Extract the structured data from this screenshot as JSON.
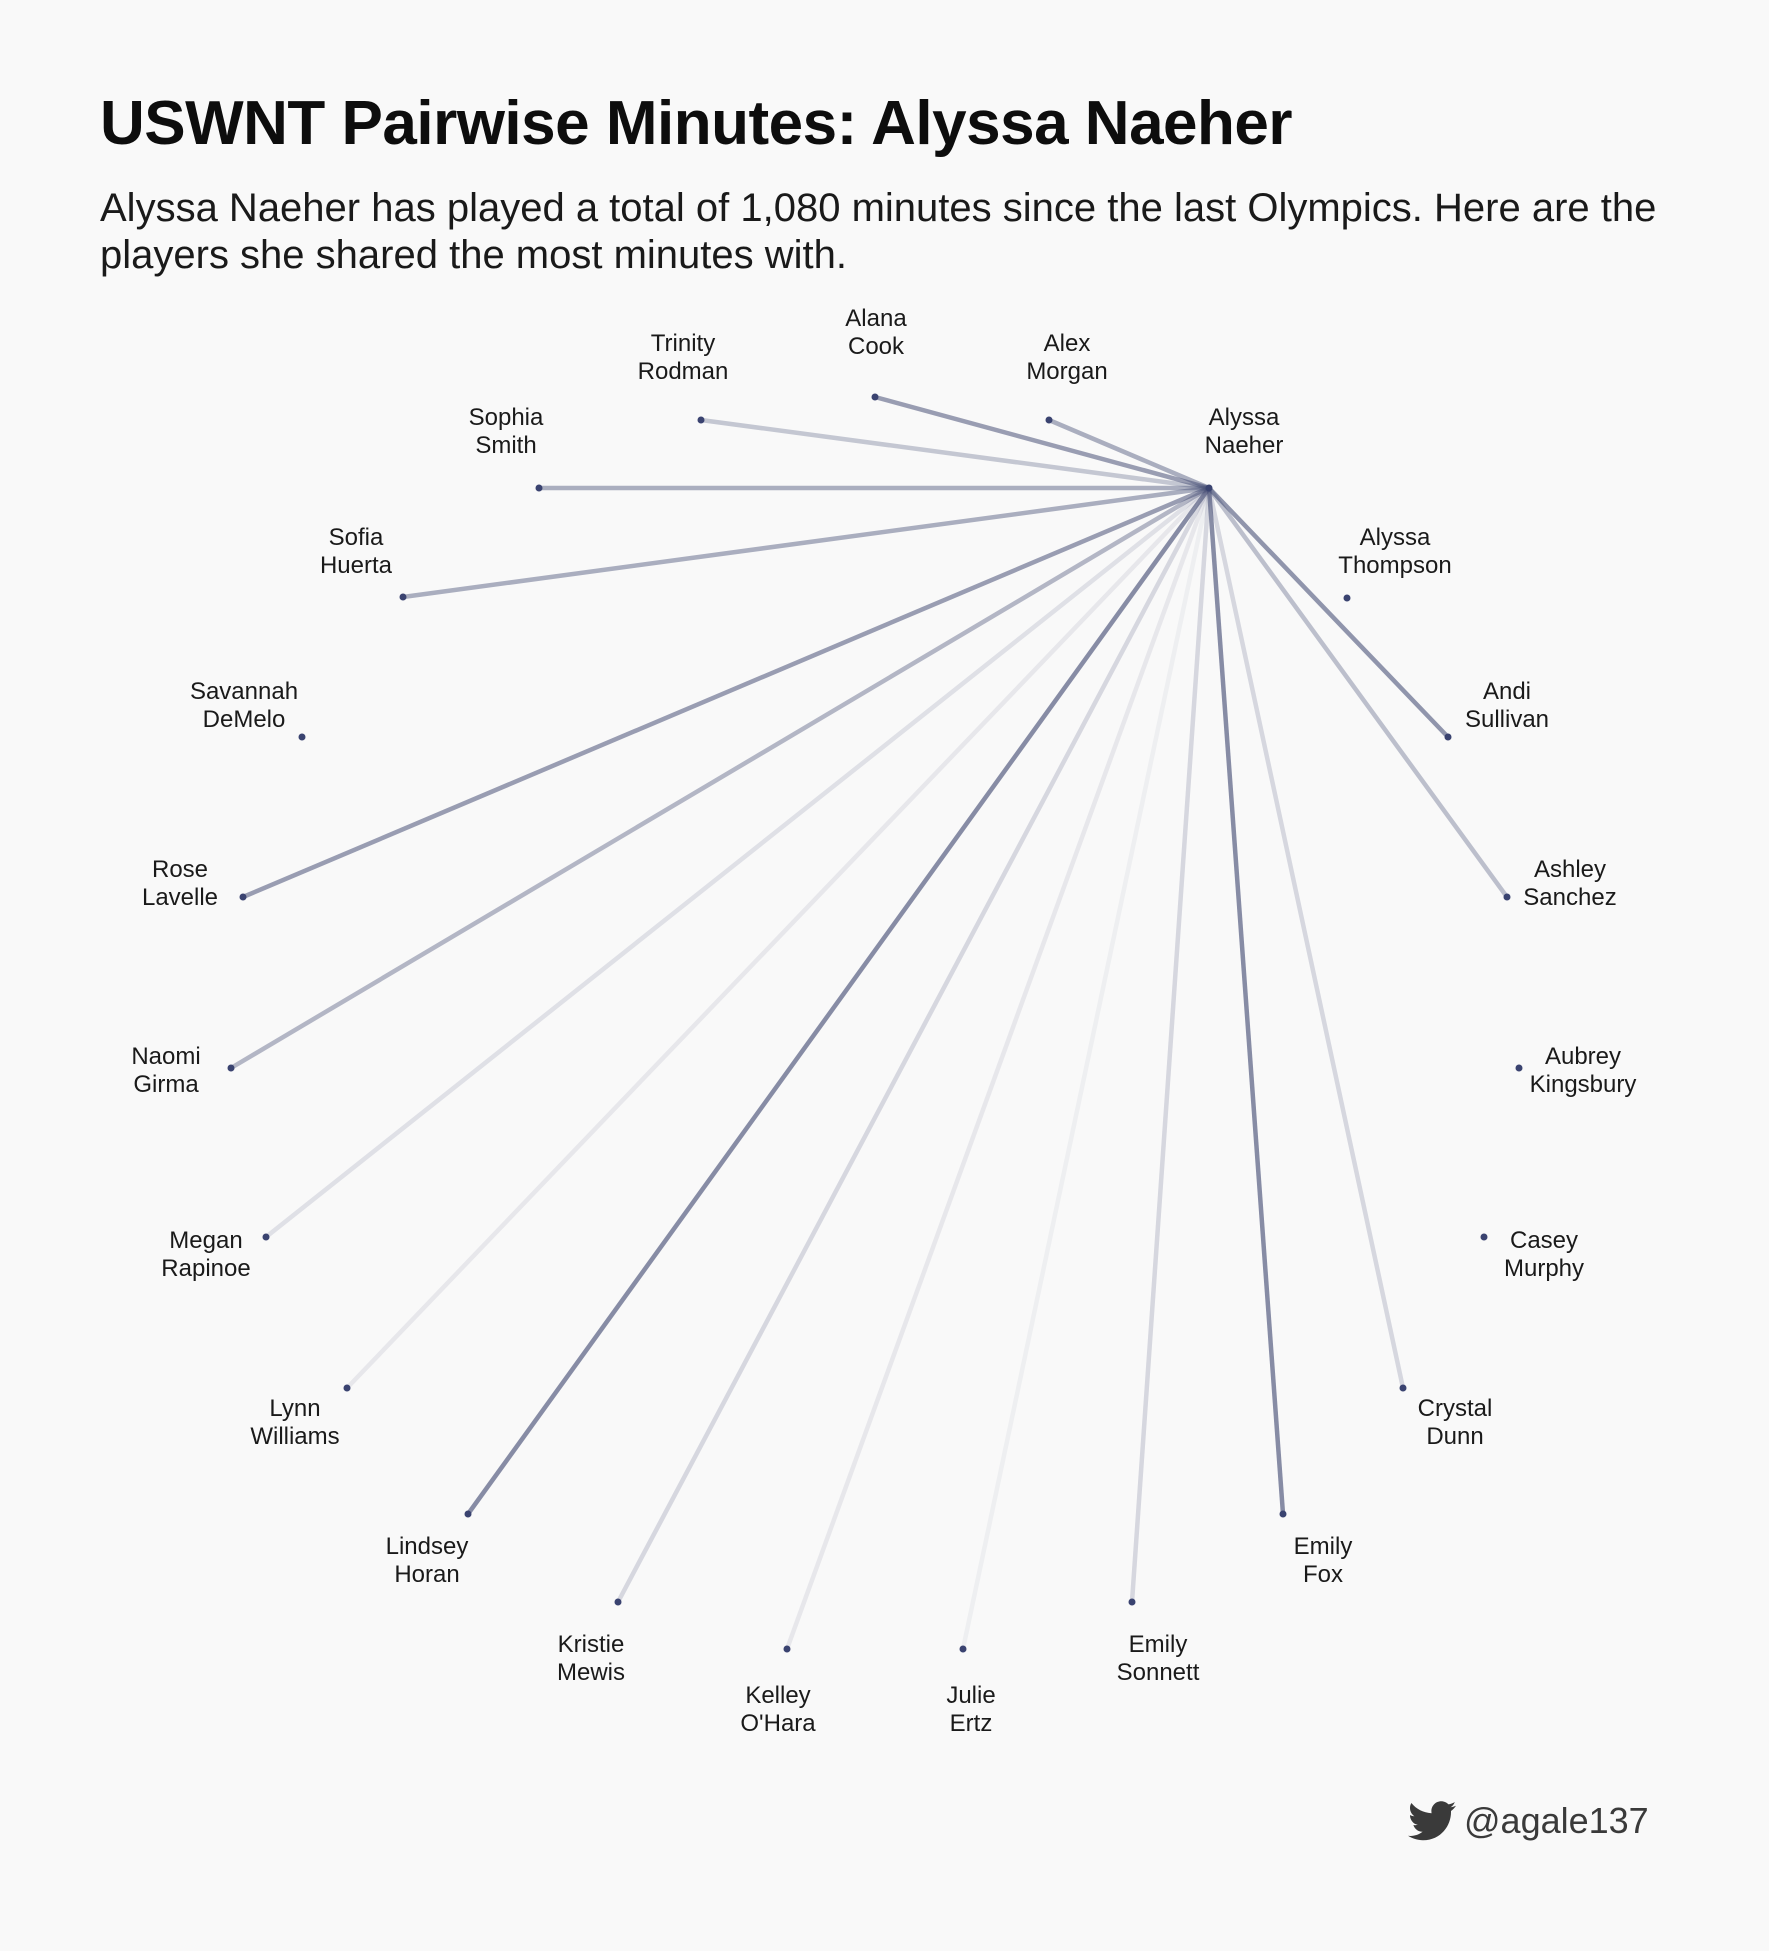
{
  "title": "USWNT Pairwise Minutes: Alyssa Naeher",
  "subtitle": "Alyssa Naeher has played a total of 1,080 minutes since the last Olympics. Here are the players she shared the most minutes with.",
  "credit": "@agale137",
  "colors": {
    "edge": "#4a5278",
    "node": "#3a4370",
    "background": "#f9f9f9"
  },
  "icons": {
    "credit": "twitter-bird-icon"
  },
  "network": {
    "center": {
      "name": [
        "Alyssa",
        "Naeher"
      ]
    },
    "players": [
      {
        "name": [
          "Alana",
          "Cook"
        ],
        "shared_strength": 0.55
      },
      {
        "name": [
          "Alex",
          "Morgan"
        ],
        "shared_strength": 0.45
      },
      {
        "name": [
          "Alyssa",
          "Thompson"
        ],
        "shared_strength": 0
      },
      {
        "name": [
          "Andi",
          "Sullivan"
        ],
        "shared_strength": 0.6
      },
      {
        "name": [
          "Ashley",
          "Sanchez"
        ],
        "shared_strength": 0.35
      },
      {
        "name": [
          "Aubrey",
          "Kingsbury"
        ],
        "shared_strength": 0
      },
      {
        "name": [
          "Casey",
          "Murphy"
        ],
        "shared_strength": 0
      },
      {
        "name": [
          "Crystal",
          "Dunn"
        ],
        "shared_strength": 0.2
      },
      {
        "name": [
          "Emily",
          "Fox"
        ],
        "shared_strength": 0.65
      },
      {
        "name": [
          "Emily",
          "Sonnett"
        ],
        "shared_strength": 0.2
      },
      {
        "name": [
          "Julie",
          "Ertz"
        ],
        "shared_strength": 0.06
      },
      {
        "name": [
          "Kelley",
          "O'Hara"
        ],
        "shared_strength": 0.1
      },
      {
        "name": [
          "Kristie",
          "Mewis"
        ],
        "shared_strength": 0.2
      },
      {
        "name": [
          "Lindsey",
          "Horan"
        ],
        "shared_strength": 0.65
      },
      {
        "name": [
          "Lynn",
          "Williams"
        ],
        "shared_strength": 0.1
      },
      {
        "name": [
          "Megan",
          "Rapinoe"
        ],
        "shared_strength": 0.15
      },
      {
        "name": [
          "Naomi",
          "Girma"
        ],
        "shared_strength": 0.4
      },
      {
        "name": [
          "Rose",
          "Lavelle"
        ],
        "shared_strength": 0.55
      },
      {
        "name": [
          "Savannah",
          "DeMelo"
        ],
        "shared_strength": 0
      },
      {
        "name": [
          "Sofia",
          "Huerta"
        ],
        "shared_strength": 0.45
      },
      {
        "name": [
          "Sophia",
          "Smith"
        ],
        "shared_strength": 0.45
      },
      {
        "name": [
          "Trinity",
          "Rodman"
        ],
        "shared_strength": 0.3
      }
    ]
  }
}
